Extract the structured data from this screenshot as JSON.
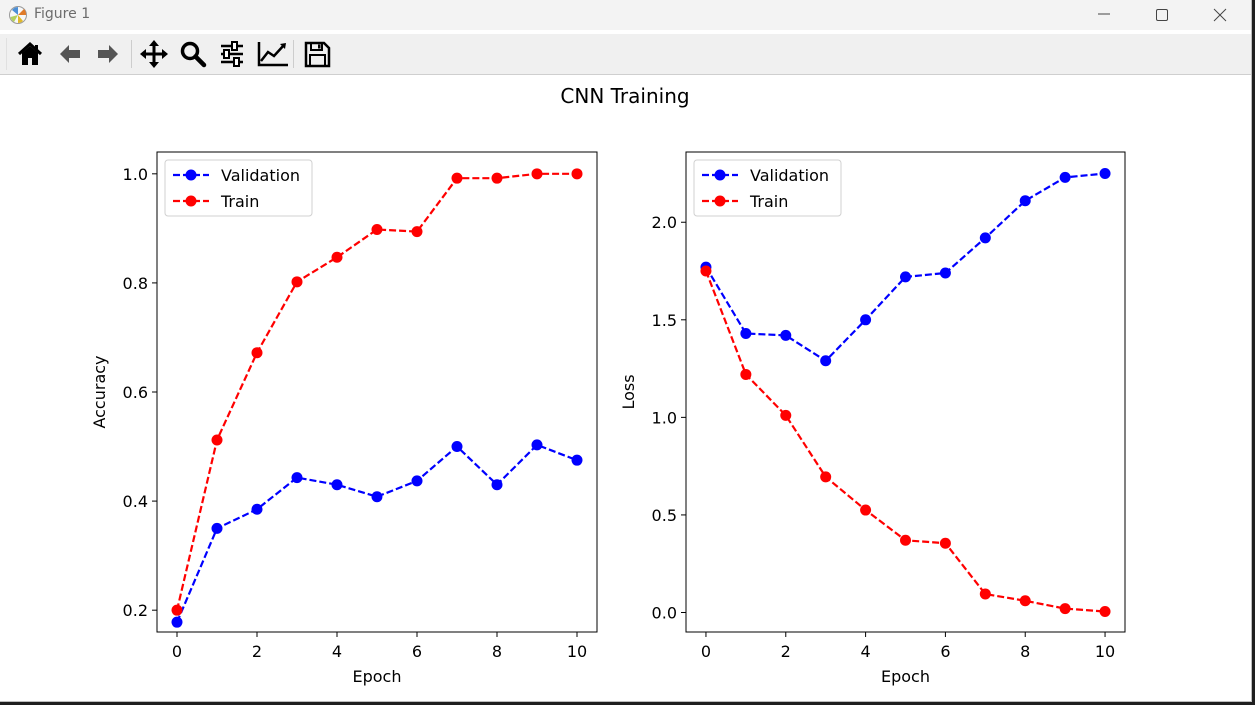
{
  "window": {
    "title": "Figure 1"
  },
  "toolbar": {
    "buttons": [
      {
        "name": "home",
        "icon": "home-icon"
      },
      {
        "name": "back",
        "icon": "arrow-left-icon"
      },
      {
        "name": "forward",
        "icon": "arrow-right-icon"
      },
      {
        "name": "pan",
        "icon": "move-icon"
      },
      {
        "name": "zoom",
        "icon": "magnifier-icon"
      },
      {
        "name": "configure-subplots",
        "icon": "sliders-icon"
      },
      {
        "name": "edit-axis",
        "icon": "line-chart-icon"
      },
      {
        "name": "save",
        "icon": "floppy-disk-icon"
      }
    ]
  },
  "figure": {
    "suptitle": "CNN Training"
  },
  "chart_data": [
    {
      "type": "line",
      "xlabel": "Epoch",
      "ylabel": "Accuracy",
      "xlim": [
        -0.5,
        10.5
      ],
      "ylim": [
        0.16,
        1.04
      ],
      "xticks": [
        0,
        2,
        4,
        6,
        8,
        10
      ],
      "yticks": [
        0.2,
        0.4,
        0.6,
        0.8,
        1.0
      ],
      "legend": "upper left",
      "x": [
        0,
        1,
        2,
        3,
        4,
        5,
        6,
        7,
        8,
        9,
        10
      ],
      "series": [
        {
          "name": "Validation",
          "color": "#0000ff",
          "style": "dashed",
          "marker": "circle",
          "values": [
            0.178,
            0.35,
            0.385,
            0.443,
            0.43,
            0.408,
            0.437,
            0.5,
            0.43,
            0.503,
            0.475
          ]
        },
        {
          "name": "Train",
          "color": "#ff0000",
          "style": "dashed",
          "marker": "circle",
          "values": [
            0.2,
            0.512,
            0.672,
            0.802,
            0.847,
            0.898,
            0.894,
            0.992,
            0.992,
            1.0,
            1.0
          ]
        }
      ]
    },
    {
      "type": "line",
      "xlabel": "Epoch",
      "ylabel": "Loss",
      "xlim": [
        -0.5,
        10.5
      ],
      "ylim": [
        -0.1,
        2.36
      ],
      "xticks": [
        0,
        2,
        4,
        6,
        8,
        10
      ],
      "yticks": [
        0.0,
        0.5,
        1.0,
        1.5,
        2.0
      ],
      "legend": "upper left",
      "x": [
        0,
        1,
        2,
        3,
        4,
        5,
        6,
        7,
        8,
        9,
        10
      ],
      "series": [
        {
          "name": "Validation",
          "color": "#0000ff",
          "style": "dashed",
          "marker": "circle",
          "values": [
            1.77,
            1.43,
            1.42,
            1.29,
            1.5,
            1.72,
            1.74,
            1.92,
            2.11,
            2.23,
            2.25
          ]
        },
        {
          "name": "Train",
          "color": "#ff0000",
          "style": "dashed",
          "marker": "circle",
          "values": [
            1.75,
            1.22,
            1.01,
            0.695,
            0.525,
            0.37,
            0.355,
            0.095,
            0.06,
            0.02,
            0.005
          ]
        }
      ]
    }
  ]
}
